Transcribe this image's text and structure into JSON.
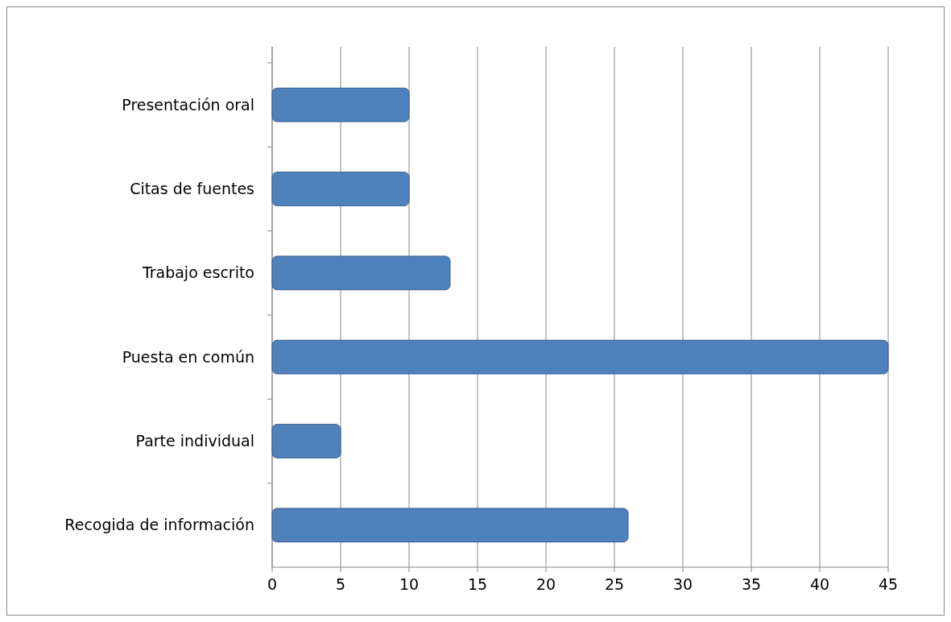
{
  "chart_data": {
    "type": "bar",
    "orientation": "horizontal",
    "categories": [
      "Presentación oral",
      "Citas de fuentes",
      "Trabajo escrito",
      "Puesta en común",
      "Parte individual",
      "Recogida de información"
    ],
    "values": [
      10,
      10,
      13,
      45,
      5,
      26
    ],
    "color": "#4f81bd",
    "xlim": [
      0,
      45
    ],
    "xticks": [
      0,
      5,
      10,
      15,
      20,
      25,
      30,
      35,
      40,
      45
    ],
    "grid": "x"
  }
}
